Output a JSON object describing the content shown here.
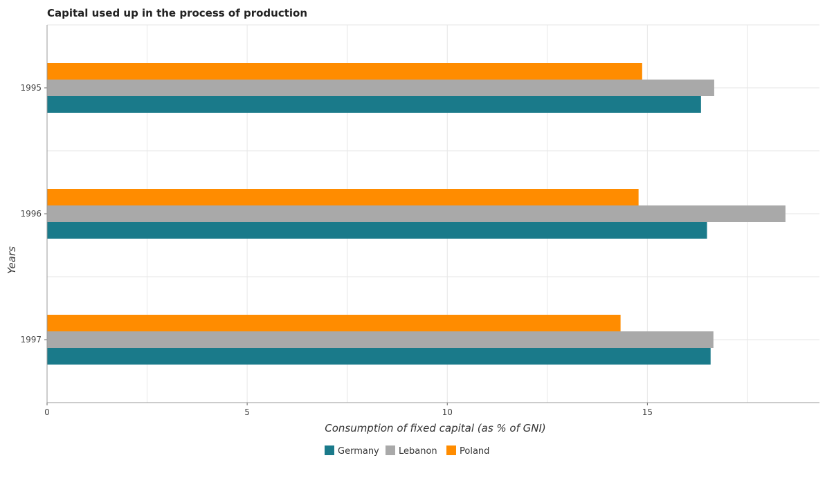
{
  "chart_data": {
    "type": "bar",
    "orientation": "horizontal",
    "title": "Capital used up in the process of production",
    "xlabel": "Consumption of fixed capital (as % of GNI)",
    "ylabel": "Years",
    "categories": [
      "1995",
      "1996",
      "1997"
    ],
    "series": [
      {
        "name": "Germany",
        "color": "#1a7a8a",
        "values": [
          16.34,
          16.49,
          16.58
        ]
      },
      {
        "name": "Lebanon",
        "color": "#a9a9a9",
        "values": [
          16.67,
          18.45,
          16.65
        ]
      },
      {
        "name": "Poland",
        "color": "#ff8c00",
        "values": [
          14.87,
          14.78,
          14.33
        ]
      }
    ],
    "xlim": [
      0,
      19.3
    ],
    "xticks": [
      0,
      5,
      10,
      15
    ],
    "grid": true,
    "legend": "bottom-center"
  }
}
